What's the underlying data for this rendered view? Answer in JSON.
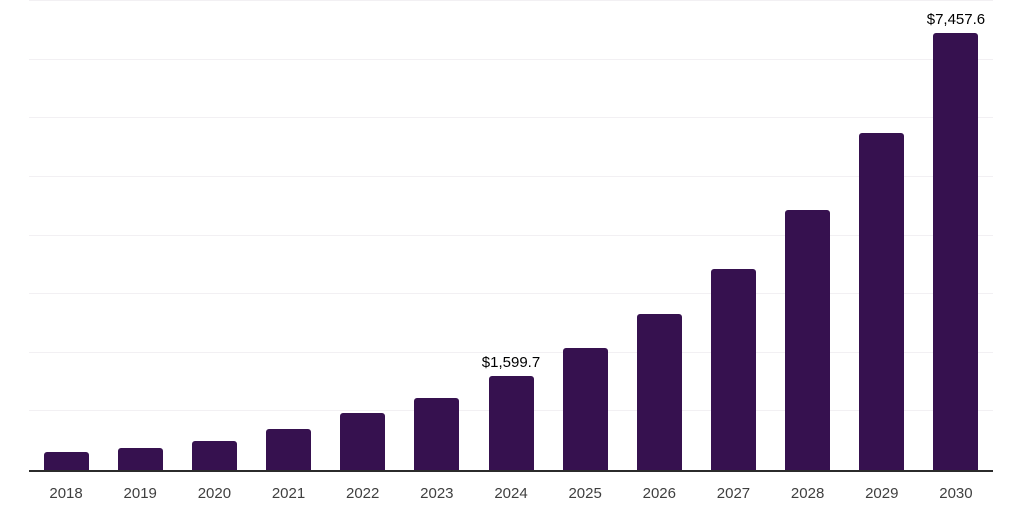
{
  "chart_data": {
    "type": "bar",
    "title": "",
    "xlabel": "",
    "ylabel": "",
    "categories": [
      "2018",
      "2019",
      "2020",
      "2021",
      "2022",
      "2023",
      "2024",
      "2025",
      "2026",
      "2027",
      "2028",
      "2029",
      "2030"
    ],
    "values": [
      300,
      380,
      495,
      700,
      970,
      1230,
      1599.7,
      2080,
      2660,
      3430,
      4440,
      5750,
      7457.6
    ],
    "value_labels": {
      "2024": "$1,599.7",
      "2030": "$7,457.6"
    },
    "ylim": [
      0,
      8000
    ],
    "gridline_interval": 1000,
    "grid": "horizontal",
    "legend": "none",
    "colors": {
      "bar": "#36114F",
      "axis": "#2B2B2B",
      "gridline": "#F2F0F3",
      "tick_label": "#3F3F3F",
      "value_label": "#000000",
      "background": "#FFFFFF"
    }
  }
}
